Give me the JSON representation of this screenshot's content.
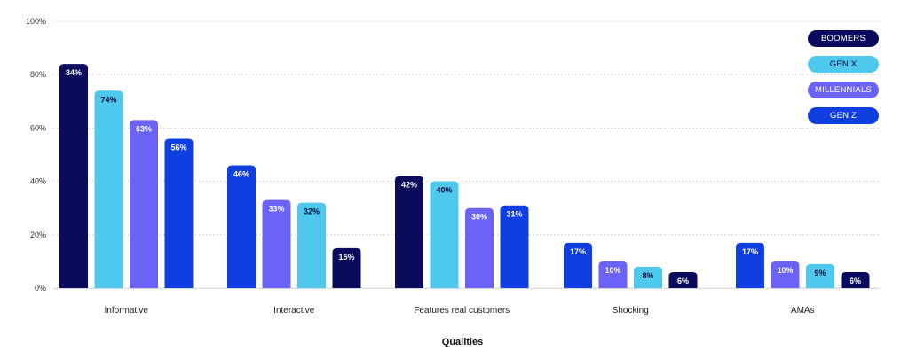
{
  "chart_data": {
    "type": "bar",
    "categories": [
      "Informative",
      "Interactive",
      "Features real customers",
      "Shocking",
      "AMAs"
    ],
    "series": [
      {
        "name": "BOOMERS",
        "values": [
          84,
          15,
          42,
          6,
          6
        ]
      },
      {
        "name": "GEN X",
        "values": [
          74,
          32,
          40,
          8,
          9
        ]
      },
      {
        "name": "MILLENNIALS",
        "values": [
          63,
          33,
          30,
          10,
          10
        ]
      },
      {
        "name": "GEN Z",
        "values": [
          56,
          46,
          31,
          17,
          17
        ]
      }
    ],
    "display_order": [
      [
        "BOOMERS",
        "GEN X",
        "MILLENNIALS",
        "GEN Z"
      ],
      [
        "GEN Z",
        "MILLENNIALS",
        "GEN X",
        "BOOMERS"
      ],
      [
        "BOOMERS",
        "GEN X",
        "MILLENNIALS",
        "GEN Z"
      ],
      [
        "GEN Z",
        "MILLENNIALS",
        "GEN X",
        "BOOMERS"
      ],
      [
        "GEN Z",
        "MILLENNIALS",
        "GEN X",
        "BOOMERS"
      ]
    ],
    "colors": {
      "BOOMERS": "#0b0b5e",
      "GEN X": "#4ec8ec",
      "MILLENNIALS": "#6b63f5",
      "GEN Z": "#0f3fe0"
    },
    "label_colors": {
      "BOOMERS": "#ffffff",
      "GEN X": "#0b0b3a",
      "MILLENNIALS": "#ffffff",
      "GEN Z": "#ffffff"
    },
    "value_suffix": "%",
    "yticks": [
      "0%",
      "20%",
      "40%",
      "60%",
      "80%",
      "100%"
    ],
    "ylim": [
      0,
      100
    ],
    "xlabel": "Qualities",
    "ylabel": "",
    "title": "",
    "grid": "horizontal dotted",
    "legend_position": "top-right"
  }
}
